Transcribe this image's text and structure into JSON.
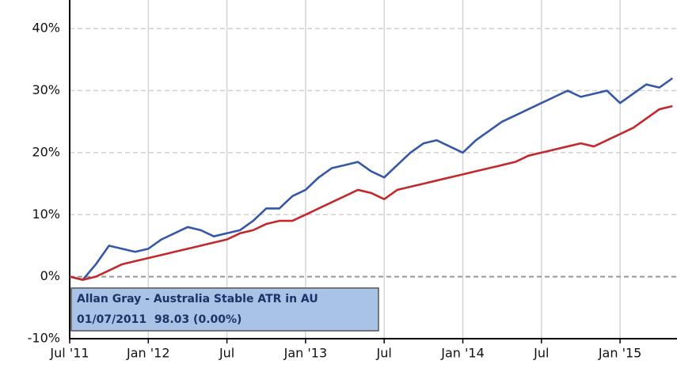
{
  "chart_data": {
    "type": "line",
    "x": [
      "2011-07",
      "2011-08",
      "2011-09",
      "2011-10",
      "2011-11",
      "2011-12",
      "2012-01",
      "2012-02",
      "2012-03",
      "2012-04",
      "2012-05",
      "2012-06",
      "2012-07",
      "2012-08",
      "2012-09",
      "2012-10",
      "2012-11",
      "2012-12",
      "2013-01",
      "2013-02",
      "2013-03",
      "2013-04",
      "2013-05",
      "2013-06",
      "2013-07",
      "2013-08",
      "2013-09",
      "2013-10",
      "2013-11",
      "2013-12",
      "2014-01",
      "2014-02",
      "2014-03",
      "2014-04",
      "2014-05",
      "2014-06",
      "2014-07",
      "2014-08",
      "2014-09",
      "2014-10",
      "2014-11",
      "2014-12",
      "2015-01",
      "2015-02",
      "2015-03",
      "2015-04",
      "2015-05"
    ],
    "series": [
      {
        "color": "#3558a6",
        "values": [
          0,
          -0.5,
          2,
          5,
          4.5,
          4,
          4.5,
          6,
          7,
          8,
          7.5,
          6.5,
          7,
          7.5,
          9,
          11,
          11,
          13,
          14,
          16,
          17.5,
          18,
          18.5,
          17,
          16,
          18,
          20,
          21.5,
          22,
          21,
          20,
          22,
          23.5,
          25,
          26,
          27,
          28,
          29,
          30,
          29,
          29.5,
          30,
          28,
          29.5,
          31,
          30.5,
          32
        ]
      },
      {
        "color": "#c3282c",
        "values": [
          0,
          -0.5,
          0,
          1,
          2,
          2.5,
          3,
          3.5,
          4,
          4.5,
          5,
          5.5,
          6,
          7,
          7.5,
          8.5,
          9,
          9,
          10,
          11,
          12,
          13,
          14,
          13.5,
          12.5,
          14,
          14.5,
          15,
          15.5,
          16,
          16.5,
          17,
          17.5,
          18,
          18.5,
          19.5,
          20,
          20.5,
          21,
          21.5,
          21,
          22,
          23,
          24,
          25.5,
          27,
          27.5
        ]
      }
    ],
    "ylim": [
      -10,
      45
    ],
    "yticks": [
      {
        "value": -10,
        "label": "-10%"
      },
      {
        "value": 0,
        "label": "0%"
      },
      {
        "value": 10,
        "label": "10%"
      },
      {
        "value": 20,
        "label": "20%"
      },
      {
        "value": 30,
        "label": "30%"
      },
      {
        "value": 40,
        "label": "40%"
      }
    ],
    "xticks": [
      {
        "value": "2011-07",
        "label": "Jul '11"
      },
      {
        "value": "2012-01",
        "label": "Jan '12"
      },
      {
        "value": "2012-07",
        "label": "Jul"
      },
      {
        "value": "2013-01",
        "label": "Jan '13"
      },
      {
        "value": "2013-07",
        "label": "Jul"
      },
      {
        "value": "2014-01",
        "label": "Jan '14"
      },
      {
        "value": "2014-07",
        "label": "Jul"
      },
      {
        "value": "2015-01",
        "label": "Jan '15"
      }
    ],
    "grid": true,
    "tooltip": {
      "title": "Allan Gray - Australia Stable ATR in AU",
      "text": "01/07/2011  98.03 (0.00%)"
    }
  }
}
